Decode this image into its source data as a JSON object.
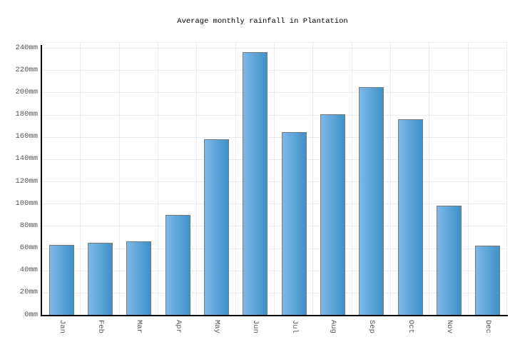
{
  "title": "Average monthly rainfall in Plantation",
  "chart_data": {
    "type": "bar",
    "title": "Average monthly rainfall in Plantation",
    "categories": [
      "Jan",
      "Feb",
      "Mar",
      "Apr",
      "May",
      "Jun",
      "Jul",
      "Aug",
      "Sep",
      "Oct",
      "Nov",
      "Dec"
    ],
    "values": [
      63,
      65,
      66,
      90,
      158,
      236,
      164,
      180,
      205,
      176,
      98,
      62
    ],
    "unit": "mm",
    "xlabel": "",
    "ylabel": "",
    "ylim": [
      0,
      240
    ],
    "ytick_step": 20,
    "y_tick_labels": [
      "0mm",
      "20mm",
      "40mm",
      "60mm",
      "80mm",
      "100mm",
      "120mm",
      "140mm",
      "160mm",
      "180mm",
      "200mm",
      "220mm",
      "240mm"
    ],
    "grid": true,
    "legend": "none",
    "colors": {
      "bar_gradient_left": "#7db8e8",
      "bar_gradient_right": "#3e91c8",
      "bar_border": "#7a7a7a",
      "axis": "#000000",
      "gridline": "#ececec",
      "tick_label": "#555555",
      "title_text": "#000000",
      "background": "#ffffff"
    }
  }
}
